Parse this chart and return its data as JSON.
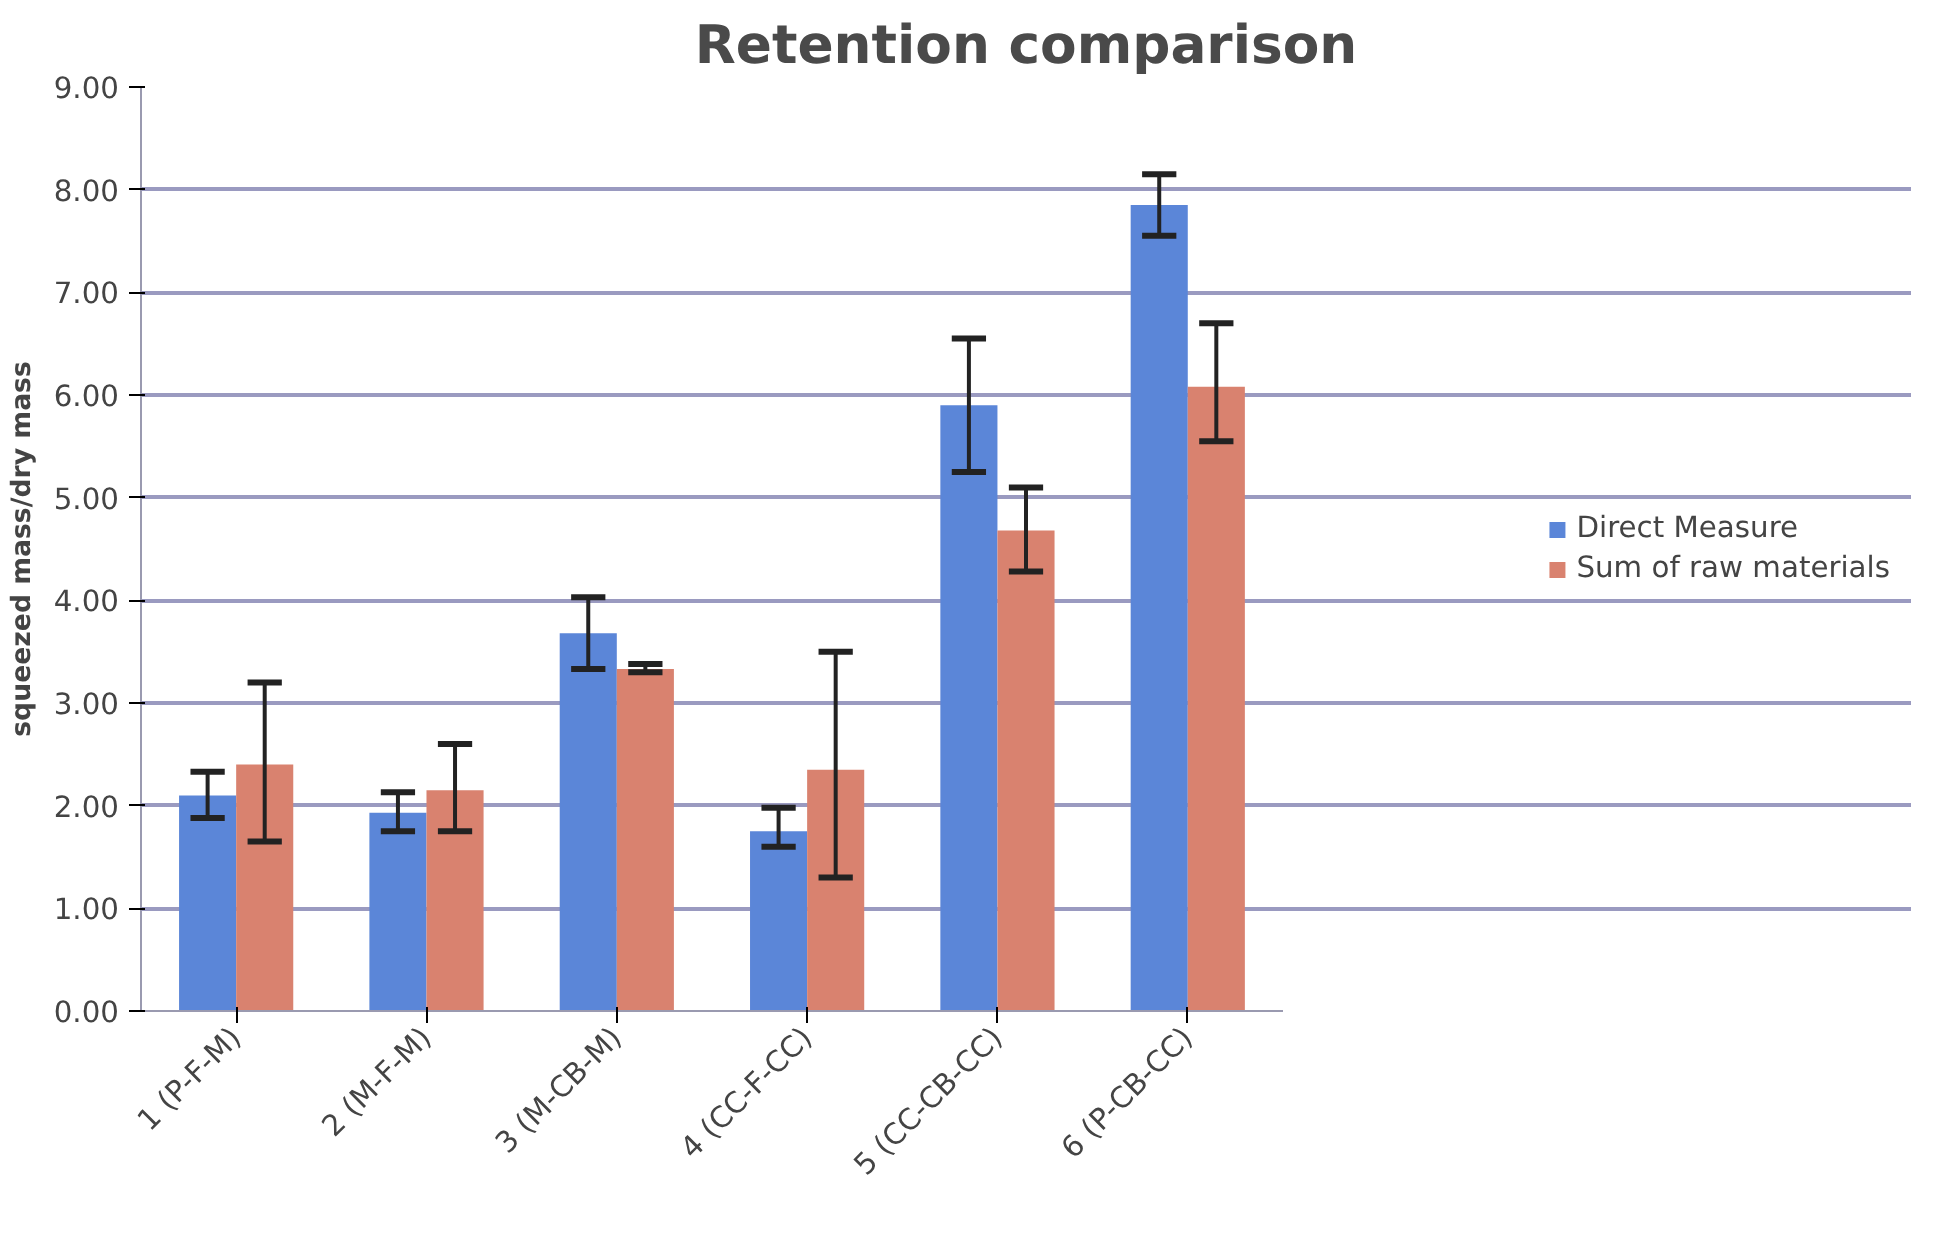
{
  "chart_data": {
    "type": "bar",
    "title": "Retention comparison",
    "ylabel": "squeezed mass/dry mass",
    "categories": [
      "1 (P-F-M)",
      "2 (M-F-M)",
      "3 (M-CB-M)",
      "4 (CC-F-CC)",
      "5 (CC-CB-CC)",
      "6 (P-CB-CC)"
    ],
    "series": [
      {
        "name": "Direct Measure",
        "color": "#5b86d8",
        "values": [
          2.1,
          1.93,
          3.68,
          1.75,
          5.9,
          7.85
        ],
        "errors": [
          [
            1.88,
            2.33
          ],
          [
            1.75,
            2.13
          ],
          [
            3.33,
            4.03
          ],
          [
            1.6,
            1.98
          ],
          [
            5.25,
            6.55
          ],
          [
            7.55,
            8.15
          ]
        ]
      },
      {
        "name": "Sum of raw materials",
        "color": "#d9826f",
        "values": [
          2.4,
          2.15,
          3.33,
          2.35,
          4.68,
          6.08
        ],
        "errors": [
          [
            1.65,
            3.2
          ],
          [
            1.75,
            2.6
          ],
          [
            3.3,
            3.38
          ],
          [
            1.3,
            3.5
          ],
          [
            4.28,
            5.1
          ],
          [
            5.55,
            6.7
          ]
        ]
      }
    ],
    "ylim": [
      0,
      9
    ],
    "yticks": [
      {
        "value": 0,
        "label": "0.00"
      },
      {
        "value": 1,
        "label": "1.00"
      },
      {
        "value": 2,
        "label": "2.00"
      },
      {
        "value": 3,
        "label": "3.00"
      },
      {
        "value": 4,
        "label": "4.00"
      },
      {
        "value": 5,
        "label": "5.00"
      },
      {
        "value": 6,
        "label": "6.00"
      },
      {
        "value": 7,
        "label": "7.00"
      },
      {
        "value": 8,
        "label": "8.00"
      },
      {
        "value": 9,
        "label": "9.00"
      }
    ],
    "grid": "y",
    "legend": "right"
  }
}
